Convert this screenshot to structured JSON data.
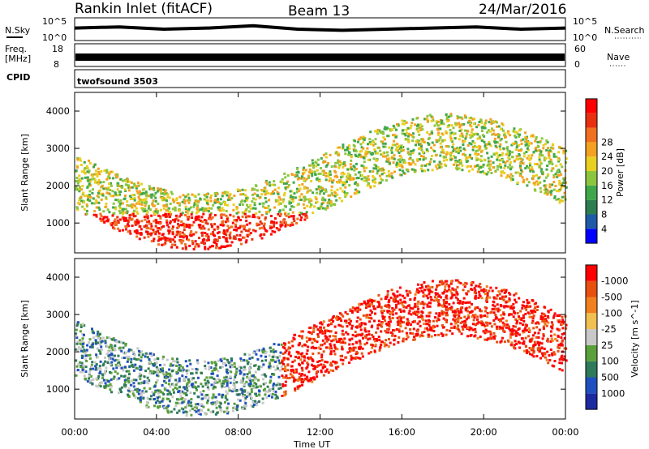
{
  "header": {
    "title": "Rankin Inlet (fitACF)",
    "beam": "Beam 13",
    "date": "24/Mar/2016"
  },
  "strips": {
    "nsky": {
      "label": "N.Sky",
      "ticks_left": [
        "10^5",
        "10^0"
      ],
      "ticks_right": [
        "10^5",
        "10^0"
      ],
      "right_label": "N.Search",
      "values": [
        0.55,
        0.6,
        0.5,
        0.55,
        0.65,
        0.5,
        0.45,
        0.5,
        0.55,
        0.6,
        0.5,
        0.55
      ]
    },
    "freq": {
      "label_line1": "Freq.",
      "label_line2": "[MHz]",
      "ticks_left": [
        "18",
        "8"
      ],
      "ticks_right": [
        "60",
        "0"
      ],
      "right_label": "Nave"
    },
    "cpid": {
      "label": "CPID",
      "text": "twofsound 3503"
    }
  },
  "chart_data": [
    {
      "type": "heatmap",
      "name": "power",
      "ylabel": "Slant Range [km]",
      "xlabel": "",
      "x_ticks": [
        "00:00",
        "04:00",
        "08:00",
        "12:00",
        "16:00",
        "20:00",
        "00:00"
      ],
      "xlim_hours": [
        0,
        24
      ],
      "y_ticks": [
        1000,
        2000,
        3000,
        4000
      ],
      "ylim": [
        200,
        4500
      ],
      "colorbar": {
        "label": "Power [dB]",
        "ticks": [
          "4",
          "8",
          "12",
          "16",
          "20",
          "24",
          "28"
        ],
        "colors": [
          "#0000ff",
          "#1e5aa8",
          "#2e7d50",
          "#3fa84a",
          "#8cc63f",
          "#e8d020",
          "#f4a020",
          "#f07020",
          "#e83010",
          "#ff0000"
        ]
      }
    },
    {
      "type": "heatmap",
      "name": "velocity",
      "ylabel": "Slant Range [km]",
      "xlabel": "Time UT",
      "x_ticks": [
        "00:00",
        "04:00",
        "08:00",
        "12:00",
        "16:00",
        "20:00",
        "00:00"
      ],
      "xlim_hours": [
        0,
        24
      ],
      "y_ticks": [
        1000,
        2000,
        3000,
        4000
      ],
      "ylim": [
        200,
        4500
      ],
      "colorbar": {
        "label": "Velocity [m s^-1]",
        "ticks": [
          "1000",
          "500",
          "100",
          "25",
          "-25",
          "-100",
          "-500",
          "-1000"
        ],
        "colors": [
          "#1c2aa0",
          "#2050c0",
          "#2e7a5a",
          "#5aa03a",
          "#c8c8c8",
          "#f0c050",
          "#f08020",
          "#e85010",
          "#ff0000"
        ]
      }
    }
  ]
}
